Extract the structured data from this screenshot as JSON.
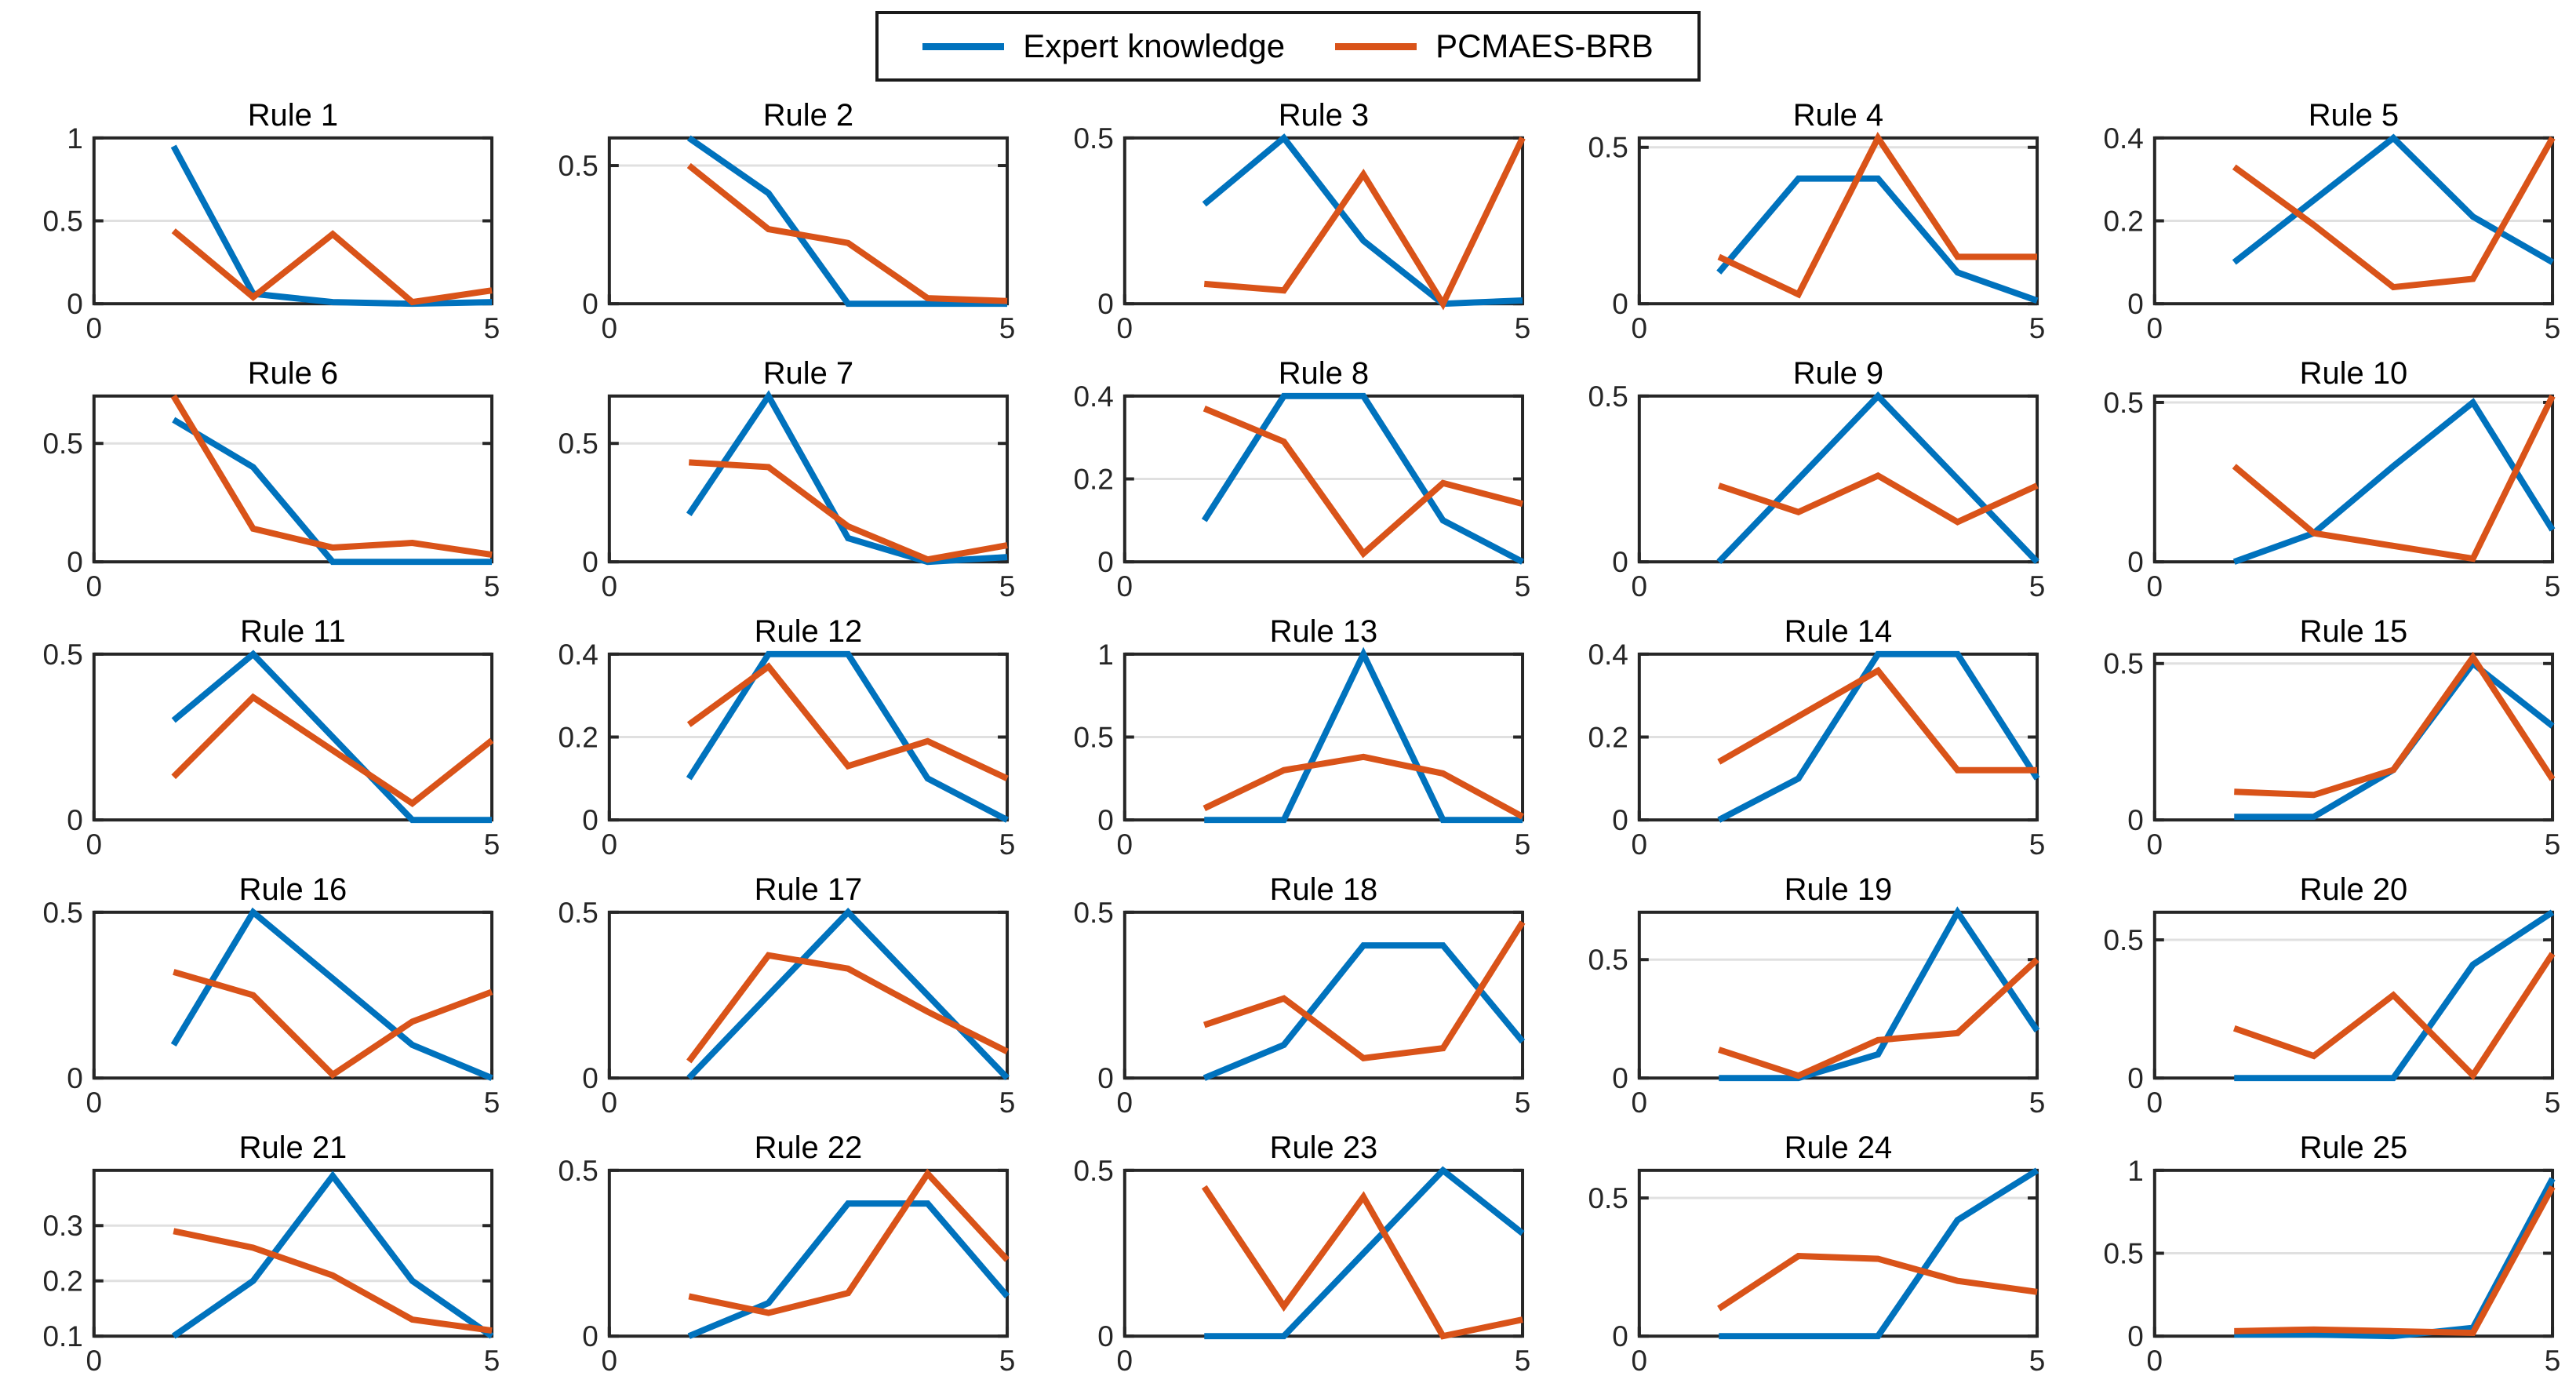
{
  "figure": {
    "legend": {
      "items": [
        {
          "label": "Expert knowledge",
          "color": "#0072BD"
        },
        {
          "label": "PCMAES-BRB",
          "color": "#D95319"
        }
      ]
    },
    "axes_style": {
      "frame_color": "#262626",
      "grid_color": "#e0e0e0",
      "tick_label_color": "#262626",
      "title_color": "#000000",
      "background": "#ffffff",
      "grid": "horizontal-only"
    }
  },
  "chart_data": [
    {
      "type": "line",
      "title": "Rule 1",
      "x": [
        1,
        2,
        3,
        4,
        5
      ],
      "xlim": [
        0,
        5
      ],
      "xticks": [
        "0",
        "5"
      ],
      "ylim": [
        0,
        1
      ],
      "yticks": [
        0,
        0.5,
        1
      ],
      "series": [
        {
          "name": "Expert knowledge",
          "color": "#0072BD",
          "values": [
            0.95,
            0.06,
            0.01,
            0,
            0.01
          ]
        },
        {
          "name": "PCMAES-BRB",
          "color": "#D95319",
          "values": [
            0.44,
            0.04,
            0.42,
            0.01,
            0.08
          ]
        }
      ]
    },
    {
      "type": "line",
      "title": "Rule 2",
      "x": [
        1,
        2,
        3,
        4,
        5
      ],
      "xlim": [
        0,
        5
      ],
      "xticks": [
        "0",
        "5"
      ],
      "ylim": [
        0,
        0.6
      ],
      "yticks": [
        0,
        0.5
      ],
      "series": [
        {
          "name": "Expert knowledge",
          "color": "#0072BD",
          "values": [
            0.6,
            0.4,
            0,
            0,
            0
          ]
        },
        {
          "name": "PCMAES-BRB",
          "color": "#D95319",
          "values": [
            0.5,
            0.27,
            0.22,
            0.02,
            0.01
          ]
        }
      ]
    },
    {
      "type": "line",
      "title": "Rule 3",
      "x": [
        1,
        2,
        3,
        4,
        5
      ],
      "xlim": [
        0,
        5
      ],
      "xticks": [
        "0",
        "5"
      ],
      "ylim": [
        0,
        0.5
      ],
      "yticks": [
        0,
        0.5
      ],
      "series": [
        {
          "name": "Expert knowledge",
          "color": "#0072BD",
          "values": [
            0.3,
            0.5,
            0.19,
            0,
            0.01
          ]
        },
        {
          "name": "PCMAES-BRB",
          "color": "#D95319",
          "values": [
            0.06,
            0.04,
            0.39,
            0,
            0.5
          ]
        }
      ]
    },
    {
      "type": "line",
      "title": "Rule 4",
      "x": [
        1,
        2,
        3,
        4,
        5
      ],
      "xlim": [
        0,
        5
      ],
      "xticks": [
        "0",
        "5"
      ],
      "ylim": [
        0,
        0.53
      ],
      "yticks": [
        0,
        0.5
      ],
      "series": [
        {
          "name": "Expert knowledge",
          "color": "#0072BD",
          "values": [
            0.1,
            0.4,
            0.4,
            0.1,
            0.01
          ]
        },
        {
          "name": "PCMAES-BRB",
          "color": "#D95319",
          "values": [
            0.15,
            0.03,
            0.53,
            0.15,
            0.15
          ]
        }
      ]
    },
    {
      "type": "line",
      "title": "Rule 5",
      "x": [
        1,
        2,
        3,
        4,
        5
      ],
      "xlim": [
        0,
        5
      ],
      "xticks": [
        "0",
        "5"
      ],
      "ylim": [
        0,
        0.4
      ],
      "yticks": [
        0,
        0.2,
        0.4
      ],
      "series": [
        {
          "name": "Expert knowledge",
          "color": "#0072BD",
          "values": [
            0.1,
            0.25,
            0.4,
            0.21,
            0.1
          ]
        },
        {
          "name": "PCMAES-BRB",
          "color": "#D95319",
          "values": [
            0.33,
            0.19,
            0.04,
            0.06,
            0.4
          ]
        }
      ]
    },
    {
      "type": "line",
      "title": "Rule 6",
      "x": [
        1,
        2,
        3,
        4,
        5
      ],
      "xlim": [
        0,
        5
      ],
      "xticks": [
        "0",
        "5"
      ],
      "ylim": [
        0,
        0.7
      ],
      "yticks": [
        0,
        0.5
      ],
      "series": [
        {
          "name": "Expert knowledge",
          "color": "#0072BD",
          "values": [
            0.6,
            0.4,
            0,
            0,
            0
          ]
        },
        {
          "name": "PCMAES-BRB",
          "color": "#D95319",
          "values": [
            0.7,
            0.14,
            0.06,
            0.08,
            0.03
          ]
        }
      ]
    },
    {
      "type": "line",
      "title": "Rule 7",
      "x": [
        1,
        2,
        3,
        4,
        5
      ],
      "xlim": [
        0,
        5
      ],
      "xticks": [
        "0",
        "5"
      ],
      "ylim": [
        0,
        0.7
      ],
      "yticks": [
        0,
        0.5
      ],
      "series": [
        {
          "name": "Expert knowledge",
          "color": "#0072BD",
          "values": [
            0.2,
            0.7,
            0.1,
            0,
            0.02
          ]
        },
        {
          "name": "PCMAES-BRB",
          "color": "#D95319",
          "values": [
            0.42,
            0.4,
            0.15,
            0.01,
            0.07
          ]
        }
      ]
    },
    {
      "type": "line",
      "title": "Rule 8",
      "x": [
        1,
        2,
        3,
        4,
        5
      ],
      "xlim": [
        0,
        5
      ],
      "xticks": [
        "0",
        "5"
      ],
      "ylim": [
        0,
        0.4
      ],
      "yticks": [
        0,
        0.2,
        0.4
      ],
      "series": [
        {
          "name": "Expert knowledge",
          "color": "#0072BD",
          "values": [
            0.1,
            0.4,
            0.4,
            0.1,
            0
          ]
        },
        {
          "name": "PCMAES-BRB",
          "color": "#D95319",
          "values": [
            0.37,
            0.29,
            0.02,
            0.19,
            0.14
          ]
        }
      ]
    },
    {
      "type": "line",
      "title": "Rule 9",
      "x": [
        1,
        2,
        3,
        4,
        5
      ],
      "xlim": [
        0,
        5
      ],
      "xticks": [
        "0",
        "5"
      ],
      "ylim": [
        0,
        0.5
      ],
      "yticks": [
        0,
        0.5
      ],
      "series": [
        {
          "name": "Expert knowledge",
          "color": "#0072BD",
          "values": [
            0,
            0.25,
            0.5,
            0.25,
            0
          ]
        },
        {
          "name": "PCMAES-BRB",
          "color": "#D95319",
          "values": [
            0.23,
            0.15,
            0.26,
            0.12,
            0.23
          ]
        }
      ]
    },
    {
      "type": "line",
      "title": "Rule 10",
      "x": [
        1,
        2,
        3,
        4,
        5
      ],
      "xlim": [
        0,
        5
      ],
      "xticks": [
        "0",
        "5"
      ],
      "ylim": [
        0,
        0.52
      ],
      "yticks": [
        0,
        0.5
      ],
      "series": [
        {
          "name": "Expert knowledge",
          "color": "#0072BD",
          "values": [
            0,
            0.09,
            0.3,
            0.5,
            0.1
          ]
        },
        {
          "name": "PCMAES-BRB",
          "color": "#D95319",
          "values": [
            0.3,
            0.09,
            0.05,
            0.01,
            0.52
          ]
        }
      ]
    },
    {
      "type": "line",
      "title": "Rule 11",
      "x": [
        1,
        2,
        3,
        4,
        5
      ],
      "xlim": [
        0,
        5
      ],
      "xticks": [
        "0",
        "5"
      ],
      "ylim": [
        0,
        0.5
      ],
      "yticks": [
        0,
        0.5
      ],
      "series": [
        {
          "name": "Expert knowledge",
          "color": "#0072BD",
          "values": [
            0.3,
            0.5,
            0.25,
            0,
            0
          ]
        },
        {
          "name": "PCMAES-BRB",
          "color": "#D95319",
          "values": [
            0.13,
            0.37,
            0.21,
            0.05,
            0.24
          ]
        }
      ]
    },
    {
      "type": "line",
      "title": "Rule 12",
      "x": [
        1,
        2,
        3,
        4,
        5
      ],
      "xlim": [
        0,
        5
      ],
      "xticks": [
        "0",
        "5"
      ],
      "ylim": [
        0,
        0.4
      ],
      "yticks": [
        0,
        0.2,
        0.4
      ],
      "series": [
        {
          "name": "Expert knowledge",
          "color": "#0072BD",
          "values": [
            0.1,
            0.4,
            0.4,
            0.1,
            0
          ]
        },
        {
          "name": "PCMAES-BRB",
          "color": "#D95319",
          "values": [
            0.23,
            0.37,
            0.13,
            0.19,
            0.1
          ]
        }
      ]
    },
    {
      "type": "line",
      "title": "Rule 13",
      "x": [
        1,
        2,
        3,
        4,
        5
      ],
      "xlim": [
        0,
        5
      ],
      "xticks": [
        "0",
        "5"
      ],
      "ylim": [
        0,
        1
      ],
      "yticks": [
        0,
        0.5,
        1
      ],
      "series": [
        {
          "name": "Expert knowledge",
          "color": "#0072BD",
          "values": [
            0,
            0,
            1,
            0,
            0
          ]
        },
        {
          "name": "PCMAES-BRB",
          "color": "#D95319",
          "values": [
            0.07,
            0.3,
            0.38,
            0.28,
            0.02
          ]
        }
      ]
    },
    {
      "type": "line",
      "title": "Rule 14",
      "x": [
        1,
        2,
        3,
        4,
        5
      ],
      "xlim": [
        0,
        5
      ],
      "xticks": [
        "0",
        "5"
      ],
      "ylim": [
        0,
        0.4
      ],
      "yticks": [
        0,
        0.2,
        0.4
      ],
      "series": [
        {
          "name": "Expert knowledge",
          "color": "#0072BD",
          "values": [
            0,
            0.1,
            0.4,
            0.4,
            0.1
          ]
        },
        {
          "name": "PCMAES-BRB",
          "color": "#D95319",
          "values": [
            0.14,
            0.25,
            0.36,
            0.12,
            0.12
          ]
        }
      ]
    },
    {
      "type": "line",
      "title": "Rule 15",
      "x": [
        1,
        2,
        3,
        4,
        5
      ],
      "xlim": [
        0,
        5
      ],
      "xticks": [
        "0",
        "5"
      ],
      "ylim": [
        0,
        0.53
      ],
      "yticks": [
        0,
        0.5
      ],
      "series": [
        {
          "name": "Expert knowledge",
          "color": "#0072BD",
          "values": [
            0.01,
            0.01,
            0.16,
            0.5,
            0.3
          ]
        },
        {
          "name": "PCMAES-BRB",
          "color": "#D95319",
          "values": [
            0.09,
            0.08,
            0.16,
            0.52,
            0.13
          ]
        }
      ]
    },
    {
      "type": "line",
      "title": "Rule 16",
      "x": [
        1,
        2,
        3,
        4,
        5
      ],
      "xlim": [
        0,
        5
      ],
      "xticks": [
        "0",
        "5"
      ],
      "ylim": [
        0,
        0.5
      ],
      "yticks": [
        0,
        0.5
      ],
      "series": [
        {
          "name": "Expert knowledge",
          "color": "#0072BD",
          "values": [
            0.1,
            0.5,
            0.3,
            0.1,
            0
          ]
        },
        {
          "name": "PCMAES-BRB",
          "color": "#D95319",
          "values": [
            0.32,
            0.25,
            0.01,
            0.17,
            0.26
          ]
        }
      ]
    },
    {
      "type": "line",
      "title": "Rule 17",
      "x": [
        1,
        2,
        3,
        4,
        5
      ],
      "xlim": [
        0,
        5
      ],
      "xticks": [
        "0",
        "5"
      ],
      "ylim": [
        0,
        0.5
      ],
      "yticks": [
        0,
        0.5
      ],
      "series": [
        {
          "name": "Expert knowledge",
          "color": "#0072BD",
          "values": [
            0,
            0.25,
            0.5,
            0.25,
            0
          ]
        },
        {
          "name": "PCMAES-BRB",
          "color": "#D95319",
          "values": [
            0.05,
            0.37,
            0.33,
            0.2,
            0.08
          ]
        }
      ]
    },
    {
      "type": "line",
      "title": "Rule 18",
      "x": [
        1,
        2,
        3,
        4,
        5
      ],
      "xlim": [
        0,
        5
      ],
      "xticks": [
        "0",
        "5"
      ],
      "ylim": [
        0,
        0.5
      ],
      "yticks": [
        0,
        0.5
      ],
      "series": [
        {
          "name": "Expert knowledge",
          "color": "#0072BD",
          "values": [
            0,
            0.1,
            0.4,
            0.4,
            0.11
          ]
        },
        {
          "name": "PCMAES-BRB",
          "color": "#D95319",
          "values": [
            0.16,
            0.24,
            0.06,
            0.09,
            0.47
          ]
        }
      ]
    },
    {
      "type": "line",
      "title": "Rule 19",
      "x": [
        1,
        2,
        3,
        4,
        5
      ],
      "xlim": [
        0,
        5
      ],
      "xticks": [
        "0",
        "5"
      ],
      "ylim": [
        0,
        0.7
      ],
      "yticks": [
        0,
        0.5
      ],
      "series": [
        {
          "name": "Expert knowledge",
          "color": "#0072BD",
          "values": [
            0,
            0,
            0.1,
            0.7,
            0.2
          ]
        },
        {
          "name": "PCMAES-BRB",
          "color": "#D95319",
          "values": [
            0.12,
            0.01,
            0.16,
            0.19,
            0.5
          ]
        }
      ]
    },
    {
      "type": "line",
      "title": "Rule 20",
      "x": [
        1,
        2,
        3,
        4,
        5
      ],
      "xlim": [
        0,
        5
      ],
      "xticks": [
        "0",
        "5"
      ],
      "ylim": [
        0,
        0.6
      ],
      "yticks": [
        0,
        0.5
      ],
      "series": [
        {
          "name": "Expert knowledge",
          "color": "#0072BD",
          "values": [
            0,
            0,
            0,
            0.41,
            0.6
          ]
        },
        {
          "name": "PCMAES-BRB",
          "color": "#D95319",
          "values": [
            0.18,
            0.08,
            0.3,
            0.01,
            0.45
          ]
        }
      ]
    },
    {
      "type": "line",
      "title": "Rule 21",
      "x": [
        1,
        2,
        3,
        4,
        5
      ],
      "xlim": [
        0,
        5
      ],
      "xticks": [
        "0",
        "5"
      ],
      "ylim": [
        0.1,
        0.4
      ],
      "yticks": [
        0.1,
        0.2,
        0.3
      ],
      "series": [
        {
          "name": "Expert knowledge",
          "color": "#0072BD",
          "values": [
            0.1,
            0.2,
            0.39,
            0.2,
            0.1
          ]
        },
        {
          "name": "PCMAES-BRB",
          "color": "#D95319",
          "values": [
            0.29,
            0.26,
            0.21,
            0.13,
            0.11
          ]
        }
      ]
    },
    {
      "type": "line",
      "title": "Rule 22",
      "x": [
        1,
        2,
        3,
        4,
        5
      ],
      "xlim": [
        0,
        5
      ],
      "xticks": [
        "0",
        "5"
      ],
      "ylim": [
        0,
        0.5
      ],
      "yticks": [
        0,
        0.5
      ],
      "series": [
        {
          "name": "Expert knowledge",
          "color": "#0072BD",
          "values": [
            0,
            0.1,
            0.4,
            0.4,
            0.12
          ]
        },
        {
          "name": "PCMAES-BRB",
          "color": "#D95319",
          "values": [
            0.12,
            0.07,
            0.13,
            0.49,
            0.23
          ]
        }
      ]
    },
    {
      "type": "line",
      "title": "Rule 23",
      "x": [
        1,
        2,
        3,
        4,
        5
      ],
      "xlim": [
        0,
        5
      ],
      "xticks": [
        "0",
        "5"
      ],
      "ylim": [
        0,
        0.5
      ],
      "yticks": [
        0,
        0.5
      ],
      "series": [
        {
          "name": "Expert knowledge",
          "color": "#0072BD",
          "values": [
            0,
            0,
            0.25,
            0.5,
            0.31
          ]
        },
        {
          "name": "PCMAES-BRB",
          "color": "#D95319",
          "values": [
            0.45,
            0.09,
            0.42,
            0,
            0.05
          ]
        }
      ]
    },
    {
      "type": "line",
      "title": "Rule 24",
      "x": [
        1,
        2,
        3,
        4,
        5
      ],
      "xlim": [
        0,
        5
      ],
      "xticks": [
        "0",
        "5"
      ],
      "ylim": [
        0,
        0.6
      ],
      "yticks": [
        0,
        0.5
      ],
      "series": [
        {
          "name": "Expert knowledge",
          "color": "#0072BD",
          "values": [
            0,
            0,
            0,
            0.42,
            0.6
          ]
        },
        {
          "name": "PCMAES-BRB",
          "color": "#D95319",
          "values": [
            0.1,
            0.29,
            0.28,
            0.2,
            0.16
          ]
        }
      ]
    },
    {
      "type": "line",
      "title": "Rule 25",
      "x": [
        1,
        2,
        3,
        4,
        5
      ],
      "xlim": [
        0,
        5
      ],
      "xticks": [
        "0",
        "5"
      ],
      "ylim": [
        0,
        1
      ],
      "yticks": [
        0,
        0.5,
        1
      ],
      "series": [
        {
          "name": "Expert knowledge",
          "color": "#0072BD",
          "values": [
            0.01,
            0.01,
            0,
            0.05,
            0.95
          ]
        },
        {
          "name": "PCMAES-BRB",
          "color": "#D95319",
          "values": [
            0.03,
            0.04,
            0.03,
            0.02,
            0.9
          ]
        }
      ]
    }
  ]
}
